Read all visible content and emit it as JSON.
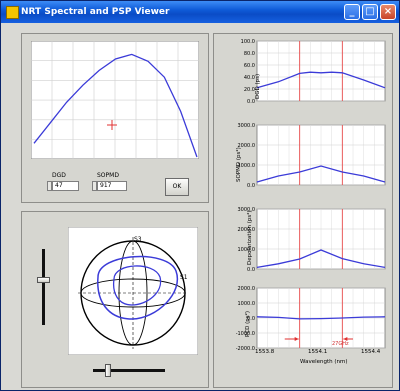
{
  "window": {
    "title": "NRT Spectral and PSP Viewer",
    "buttons": [
      "_",
      "□",
      "×"
    ]
  },
  "controls": {
    "dgd_label": "DGD",
    "dgd_value": "47",
    "sopmd_label": "SOPMD",
    "sopmd_value": "917",
    "ok_label": "OK"
  },
  "sphere": {
    "pole_label": "S3",
    "equator_label": "S1",
    "vertical_slider_value": 0.45,
    "horizontal_slider_value": 0.3
  },
  "charts": {
    "x_ticks": [
      "1553.8",
      "1554.1",
      "1554.4"
    ],
    "x_label": "Wavelength (nm)",
    "dgd": {
      "ylabel": "DGD (ps)",
      "yticks": [
        "100.0",
        "80.0",
        "60.0",
        "40.0",
        "20.0",
        "0.0"
      ]
    },
    "sopmd": {
      "ylabel": "SOPMD (ps²)",
      "yticks": [
        "3000.0",
        "2000.0",
        "1000.0",
        "0.0"
      ]
    },
    "depol": {
      "ylabel": "Depolarization (ps²)",
      "yticks": [
        "3000.0",
        "2000.0",
        "1000.0",
        "0.0"
      ]
    },
    "pcd": {
      "ylabel": "PCD (ps²)",
      "yticks": [
        "2000.0",
        "1000.0",
        "0.0",
        "-1000.0",
        "-2000.0"
      ]
    },
    "annotation": "27GHz"
  },
  "chart_data": [
    {
      "type": "line",
      "name": "spectrum-plot",
      "x": [
        0,
        1,
        2,
        3,
        4,
        5,
        6,
        7,
        8,
        9,
        10
      ],
      "series": [
        {
          "values": [
            12,
            30,
            48,
            63,
            76,
            86,
            90,
            84,
            70,
            40,
            0
          ]
        }
      ],
      "ylim": [
        0,
        100
      ],
      "grid": true
    },
    {
      "type": "line",
      "title": "",
      "ylabel": "DGD (ps)",
      "xlabel": "",
      "x": [
        1553.8,
        1553.9,
        1554.0,
        1554.05,
        1554.1,
        1554.15,
        1554.2,
        1554.3,
        1554.4
      ],
      "series": [
        {
          "values": [
            22,
            32,
            46,
            48,
            47,
            48,
            47,
            35,
            22
          ]
        }
      ],
      "ylim": [
        0,
        100
      ],
      "grid": true
    },
    {
      "type": "line",
      "title": "",
      "ylabel": "SOPMD (ps²)",
      "xlabel": "",
      "x": [
        1553.8,
        1553.9,
        1554.0,
        1554.1,
        1554.2,
        1554.3,
        1554.4
      ],
      "series": [
        {
          "values": [
            150,
            450,
            650,
            950,
            650,
            450,
            150
          ]
        }
      ],
      "ylim": [
        0,
        3000
      ],
      "grid": true
    },
    {
      "type": "line",
      "title": "",
      "ylabel": "Depolarization (ps²)",
      "xlabel": "",
      "x": [
        1553.8,
        1553.9,
        1554.0,
        1554.1,
        1554.2,
        1554.3,
        1554.4
      ],
      "series": [
        {
          "values": [
            80,
            260,
            500,
            950,
            520,
            260,
            80
          ]
        }
      ],
      "ylim": [
        0,
        3000
      ],
      "grid": true
    },
    {
      "type": "line",
      "title": "",
      "ylabel": "PCD (ps²)",
      "xlabel": "Wavelength (nm)",
      "x": [
        1553.8,
        1553.9,
        1554.0,
        1554.1,
        1554.2,
        1554.3,
        1554.4
      ],
      "series": [
        {
          "values": [
            80,
            40,
            -60,
            -40,
            0,
            60,
            80
          ]
        }
      ],
      "ylim": [
        -2000,
        2000
      ],
      "grid": true
    }
  ]
}
